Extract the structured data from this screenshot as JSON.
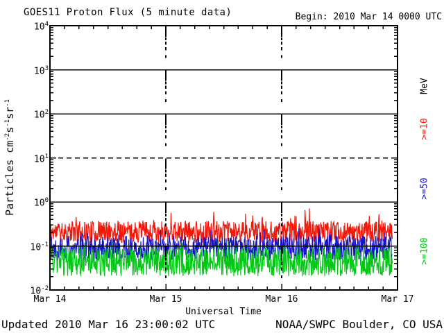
{
  "chart_data": {
    "type": "line",
    "title": "GOES11 Proton Flux (5 minute data)",
    "begin_label": "Begin: 2010 Mar 14 0000 UTC",
    "xlabel": "Universal Time",
    "ylabel_parts": [
      {
        "text": "Particles cm"
      },
      {
        "sup": "-2"
      },
      {
        "text": "s"
      },
      {
        "sup": "-1"
      },
      {
        "text": "sr"
      },
      {
        "sup": "-1"
      }
    ],
    "x_tick_labels": [
      "Mar 14",
      "Mar 15",
      "Mar 16",
      "Mar 17"
    ],
    "y_tick_exponents": [
      4,
      3,
      2,
      1,
      0,
      -1,
      -2
    ],
    "y_scale": "log10",
    "ylim": [
      0.01,
      10000
    ],
    "x_range": {
      "start": "2010 Mar 14 0000 UTC",
      "days": 3,
      "minutes_per_point": 5
    },
    "grid": {
      "solid_line_exponents": [
        3,
        2,
        0,
        -1
      ],
      "dashed_threshold_exponent": 1,
      "dashed_day_columns": [
        1,
        2
      ],
      "x_minor_ticks_per_day": 8
    },
    "legend_title": "MeV",
    "series": [
      {
        "name": "proton-flux-ge-10MeV",
        "legend_label": ">=10",
        "color": "#f3170a",
        "mean_log10": -0.68,
        "noise_amp_log10": 0.25,
        "spike_prob": 0.05,
        "spike_amp_log10": 0.32,
        "approx_range": [
          0.11,
          0.7
        ],
        "points": 852,
        "seed": 11
      },
      {
        "name": "proton-flux-ge-50MeV",
        "legend_label": ">=50",
        "color": "#1414cc",
        "mean_log10": -1.05,
        "noise_amp_log10": 0.28,
        "spike_prob": 0.03,
        "spike_amp_log10": 0.25,
        "approx_range": [
          0.04,
          0.25
        ],
        "points": 852,
        "seed": 22
      },
      {
        "name": "proton-flux-ge-100MeV",
        "legend_label": ">=100",
        "color": "#00c814",
        "mean_log10": -1.36,
        "noise_amp_log10": 0.33,
        "spike_prob": 0.03,
        "spike_amp_log10": 0.22,
        "approx_range": [
          0.018,
          0.12
        ],
        "points": 852,
        "seed": 33
      }
    ]
  },
  "footer": {
    "updated": "Updated 2010 Mar 16 23:00:02 UTC",
    "source": "NOAA/SWPC Boulder, CO USA"
  }
}
